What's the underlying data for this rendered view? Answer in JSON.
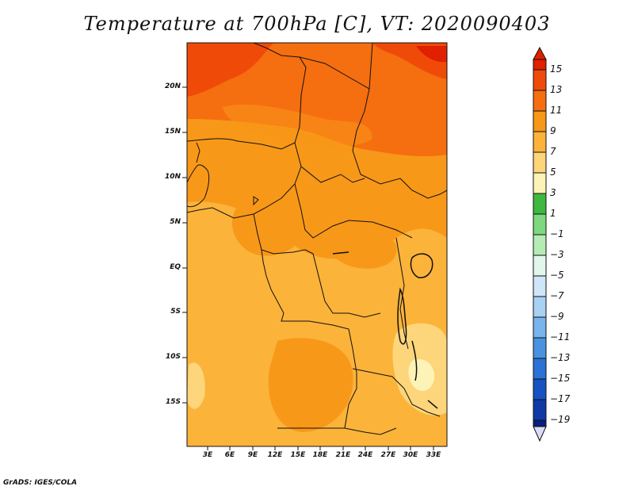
{
  "title": "Temperature at 700hPa [C], VT: 2020090403",
  "credit": "GrADS: IGES/COLA",
  "map": {
    "lat_ticks": [
      "20N",
      "15N",
      "10N",
      "5N",
      "EQ",
      "5S",
      "10S",
      "15S"
    ],
    "lon_ticks": [
      "3E",
      "6E",
      "9E",
      "12E",
      "15E",
      "18E",
      "21E",
      "24E",
      "27E",
      "30E",
      "33E"
    ]
  },
  "colorbar": {
    "labels": [
      "15",
      "13",
      "11",
      "9",
      "7",
      "5",
      "3",
      "1",
      "−1",
      "−3",
      "−5",
      "−7",
      "−9",
      "−11",
      "−13",
      "−15",
      "−17",
      "−19"
    ],
    "colors": [
      "#e02000",
      "#f04a08",
      "#f56e10",
      "#f89818",
      "#fbb33a",
      "#fdd57a",
      "#fef3b6",
      "#3eb83e",
      "#7ed87e",
      "#b4ecb4",
      "#e2f6ec",
      "#cfe6f8",
      "#a9d1f4",
      "#7ab4ec",
      "#4a92e0",
      "#2c72d6",
      "#1852c2",
      "#0e3aa6",
      "#06207e",
      "#d8dcf6"
    ]
  }
}
